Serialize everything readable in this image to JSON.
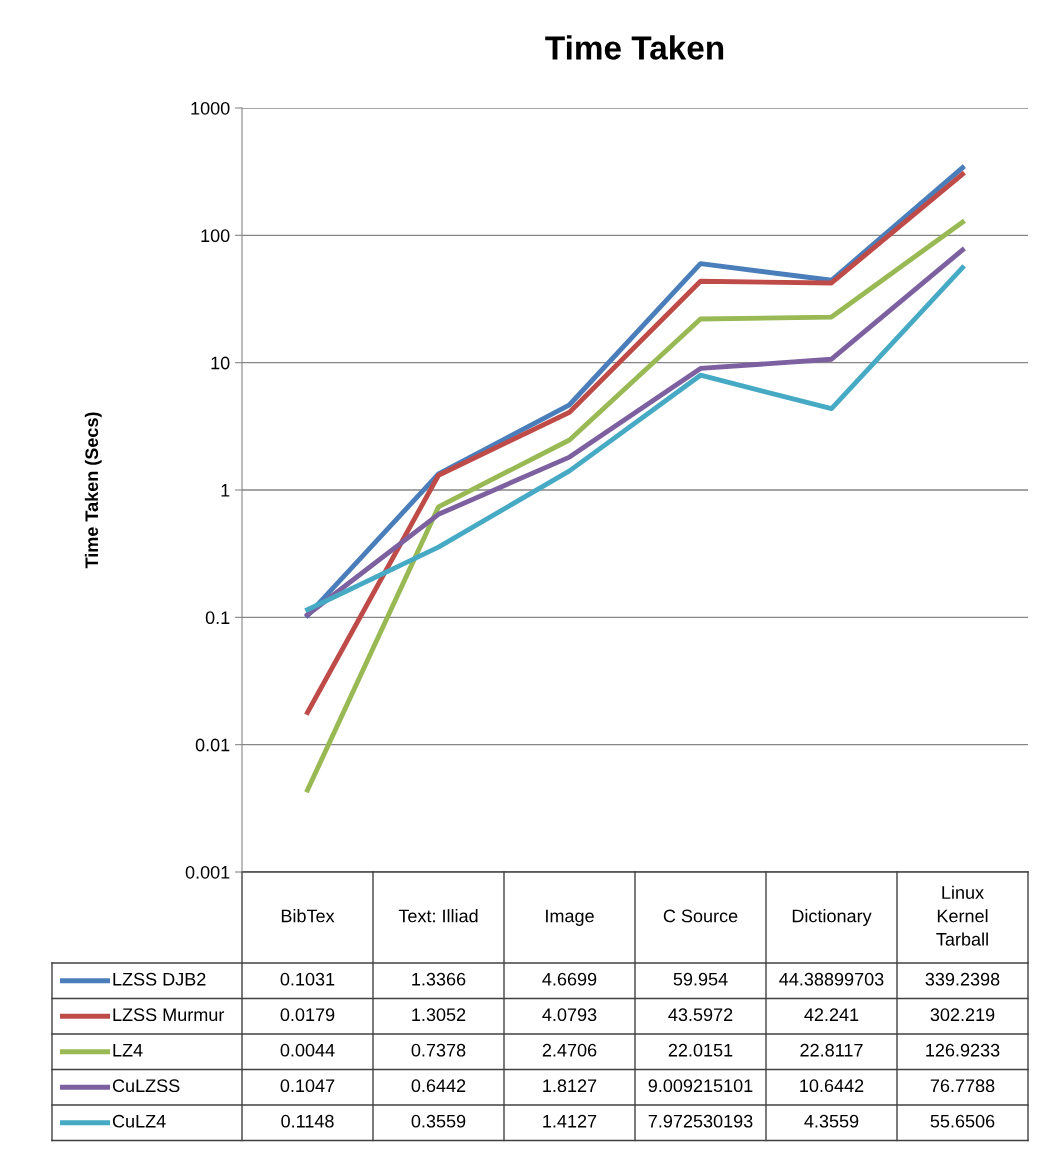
{
  "chart_data": {
    "type": "line",
    "title": "Time Taken",
    "ylabel": "Time Taken (Secs)",
    "categories": [
      "BibTex",
      "Text: Illiad",
      "Image",
      "C Source",
      "Dictionary",
      "Linux\nKernel\nTarball"
    ],
    "series": [
      {
        "name": "LZSS DJB2",
        "color": "#4a7ebb",
        "values": [
          0.1031,
          1.3366,
          4.6699,
          59.954,
          44.38899703,
          339.2398
        ]
      },
      {
        "name": "LZSS Murmur",
        "color": "#be4b48",
        "values": [
          0.0179,
          1.3052,
          4.0793,
          43.5972,
          42.241,
          302.219
        ]
      },
      {
        "name": "LZ4",
        "color": "#98b954",
        "values": [
          0.0044,
          0.7378,
          2.4706,
          22.0151,
          22.8117,
          126.9233
        ]
      },
      {
        "name": "CuLZSS",
        "color": "#7d60a0",
        "values": [
          0.1047,
          0.6442,
          1.8127,
          9.009215101,
          10.6442,
          76.7788
        ]
      },
      {
        "name": "CuLZ4",
        "color": "#46aac5",
        "values": [
          0.1148,
          0.3559,
          1.4127,
          7.972530193,
          4.3559,
          55.6506
        ]
      }
    ],
    "log": "y",
    "ylim": [
      0.001,
      1000
    ],
    "yticks": [
      0.001,
      0.01,
      0.1,
      1,
      10,
      100,
      1000
    ],
    "grid": "y",
    "legend": "bottom",
    "data_labels": true,
    "marker": "none",
    "line_style": "solid"
  }
}
